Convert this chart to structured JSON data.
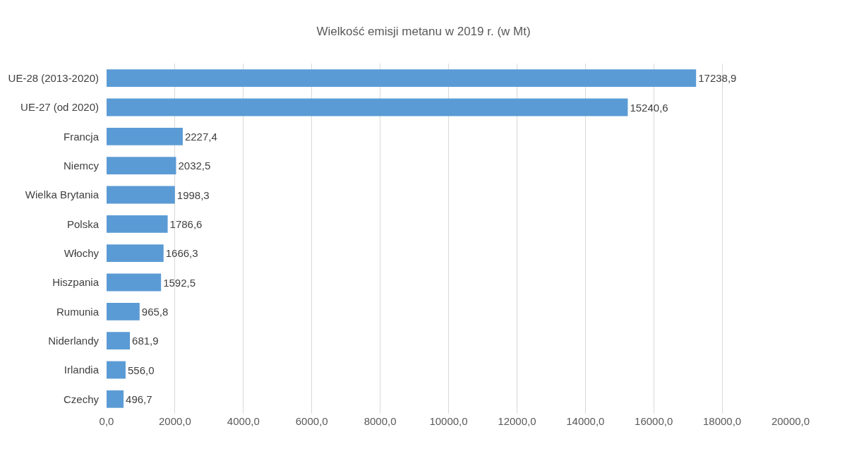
{
  "chart_data": {
    "type": "bar",
    "orientation": "horizontal",
    "title": "Wielkość emisji metanu w 2019 r. (w Mt)",
    "categories": [
      "UE-28 (2013-2020)",
      "UE-27 (od 2020)",
      "Francja",
      "Niemcy",
      "Wielka Brytania",
      "Polska",
      "Włochy",
      "Hiszpania",
      "Rumunia",
      "Niderlandy",
      "Irlandia",
      "Czechy"
    ],
    "values": [
      17238.9,
      15240.6,
      2227.4,
      2032.5,
      1998.3,
      1786.6,
      1666.3,
      1592.5,
      965.8,
      681.9,
      556.0,
      496.7
    ],
    "value_labels": [
      "17238,9",
      "15240,6",
      "2227,4",
      "2032,5",
      "1998,3",
      "1786,6",
      "1666,3",
      "1592,5",
      "965,8",
      "681,9",
      "556,0",
      "496,7"
    ],
    "color": "#5b9bd5",
    "xlim": [
      0,
      20000
    ],
    "xticks": [
      {
        "value": 0,
        "label": "0,0"
      },
      {
        "value": 2000,
        "label": "2000,0"
      },
      {
        "value": 4000,
        "label": "4000,0"
      },
      {
        "value": 6000,
        "label": "6000,0"
      },
      {
        "value": 8000,
        "label": "8000,0"
      },
      {
        "value": 10000,
        "label": "10000,0"
      },
      {
        "value": 12000,
        "label": "12000,0"
      },
      {
        "value": 14000,
        "label": "14000,0"
      },
      {
        "value": 16000,
        "label": "16000,0"
      },
      {
        "value": 18000,
        "label": "18000,0"
      },
      {
        "value": 20000,
        "label": "20000,0"
      }
    ],
    "grid": "x"
  }
}
